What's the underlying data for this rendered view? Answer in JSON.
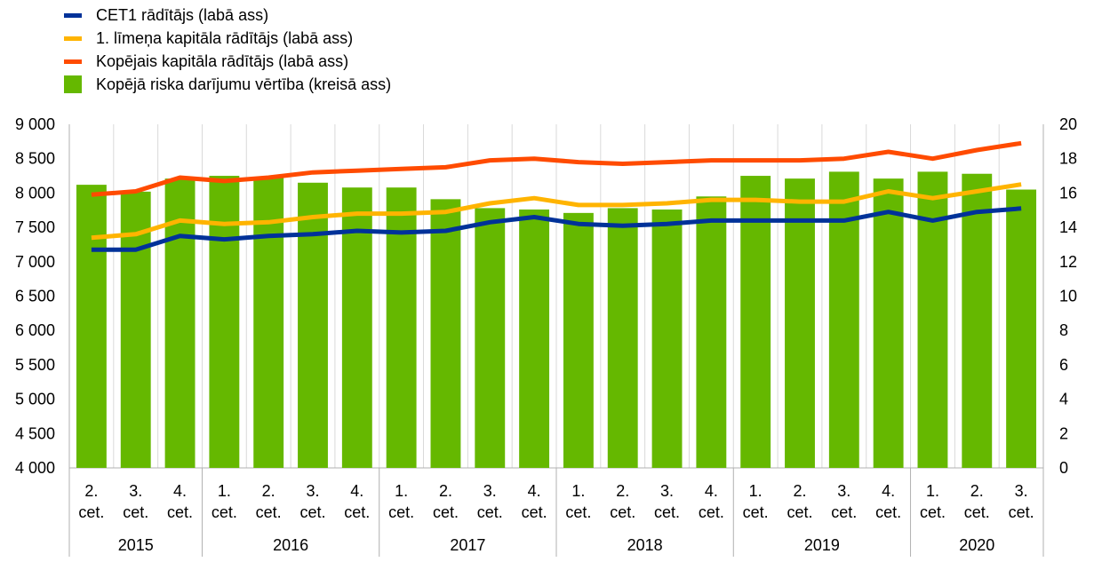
{
  "colors": {
    "cet1": "#003299",
    "tier1": "#ffb400",
    "total": "#ff4b00",
    "rwa": "#65b800",
    "grid": "#d9d9d9",
    "axis": "#b0b0b0"
  },
  "legend": [
    {
      "label": "CET1 rādītājs (labā ass)",
      "kind": "line",
      "color_key": "cet1"
    },
    {
      "label": "1. līmeņa kapitāla rādītājs (labā ass)",
      "kind": "line",
      "color_key": "tier1"
    },
    {
      "label": "Kopējais kapitāla rādītājs (labā ass)",
      "kind": "line",
      "color_key": "total"
    },
    {
      "label": "Kopējā riska darījumu vērtība (kreisā ass)",
      "kind": "box",
      "color_key": "rwa"
    }
  ],
  "chart_data": {
    "type": "bar",
    "categories": [
      {
        "q": "2.",
        "s": "cet."
      },
      {
        "q": "3.",
        "s": "cet."
      },
      {
        "q": "4.",
        "s": "cet."
      },
      {
        "q": "1.",
        "s": "cet."
      },
      {
        "q": "2.",
        "s": "cet."
      },
      {
        "q": "3.",
        "s": "cet."
      },
      {
        "q": "4.",
        "s": "cet."
      },
      {
        "q": "1.",
        "s": "cet."
      },
      {
        "q": "2.",
        "s": "cet."
      },
      {
        "q": "3.",
        "s": "cet."
      },
      {
        "q": "4.",
        "s": "cet."
      },
      {
        "q": "1.",
        "s": "cet."
      },
      {
        "q": "2.",
        "s": "cet."
      },
      {
        "q": "3.",
        "s": "cet."
      },
      {
        "q": "4.",
        "s": "cet."
      },
      {
        "q": "1.",
        "s": "cet."
      },
      {
        "q": "2.",
        "s": "cet."
      },
      {
        "q": "3.",
        "s": "cet."
      },
      {
        "q": "4.",
        "s": "cet."
      },
      {
        "q": "1.",
        "s": "cet."
      },
      {
        "q": "2.",
        "s": "cet."
      },
      {
        "q": "3.",
        "s": "cet."
      }
    ],
    "years": [
      {
        "label": "2015",
        "count": 3
      },
      {
        "label": "2016",
        "count": 4
      },
      {
        "label": "2017",
        "count": 4
      },
      {
        "label": "2018",
        "count": 4
      },
      {
        "label": "2019",
        "count": 4
      },
      {
        "label": "2020",
        "count": 3
      }
    ],
    "left_axis": {
      "min": 4000,
      "max": 9000,
      "step": 500,
      "tick_labels": [
        "4 000",
        "4 500",
        "5 000",
        "5 500",
        "6 000",
        "6 500",
        "7 000",
        "7 500",
        "8 000",
        "8 500",
        "9 000"
      ]
    },
    "right_axis": {
      "min": 0,
      "max": 20,
      "step": 2,
      "tick_labels": [
        "0",
        "2",
        "4",
        "6",
        "8",
        "10",
        "12",
        "14",
        "16",
        "18",
        "20"
      ]
    },
    "bars": {
      "name": "Kopējā riska darījumu vērtība (kreisā ass)",
      "values": [
        8120,
        8020,
        8210,
        8250,
        8230,
        8150,
        8080,
        8080,
        7910,
        7780,
        7760,
        7710,
        7780,
        7760,
        7950,
        8250,
        8210,
        8310,
        8210,
        8310,
        8280,
        8050
      ]
    },
    "lines": [
      {
        "name": "Kopējais kapitāla rādītājs (labā ass)",
        "color_key": "total",
        "values": [
          15.9,
          16.1,
          16.9,
          16.7,
          16.9,
          17.2,
          17.3,
          17.4,
          17.5,
          17.9,
          18.0,
          17.8,
          17.7,
          17.8,
          17.9,
          17.9,
          17.9,
          18.0,
          18.4,
          18.0,
          18.5,
          18.9
        ]
      },
      {
        "name": "1. līmeņa kapitāla rādītājs (labā ass)",
        "color_key": "tier1",
        "values": [
          13.4,
          13.6,
          14.4,
          14.2,
          14.3,
          14.6,
          14.8,
          14.8,
          14.9,
          15.4,
          15.7,
          15.3,
          15.3,
          15.4,
          15.6,
          15.6,
          15.5,
          15.5,
          16.1,
          15.7,
          16.1,
          16.5
        ]
      },
      {
        "name": "CET1 rādītājs (labā ass)",
        "color_key": "cet1",
        "values": [
          12.7,
          12.7,
          13.5,
          13.3,
          13.5,
          13.6,
          13.8,
          13.7,
          13.8,
          14.3,
          14.6,
          14.2,
          14.1,
          14.2,
          14.4,
          14.4,
          14.4,
          14.4,
          14.9,
          14.4,
          14.9,
          15.1
        ]
      }
    ],
    "grid": "vertical-category-separators"
  }
}
